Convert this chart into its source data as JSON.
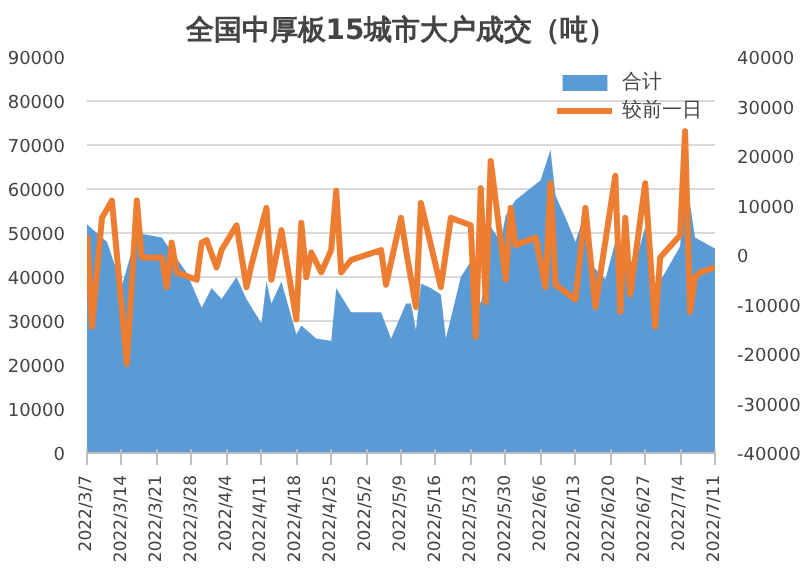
{
  "chart_data": {
    "type": "area",
    "title": "全国中厚板15城市大户成交（吨）",
    "xlim": [
      "2022-03-07",
      "2022-07-11"
    ],
    "xticks": [
      {
        "value": "2022-03-07",
        "label": "2022/3/7"
      },
      {
        "value": "2022-03-14",
        "label": "2022/3/14"
      },
      {
        "value": "2022-03-21",
        "label": "2022/3/21"
      },
      {
        "value": "2022-03-28",
        "label": "2022/3/28"
      },
      {
        "value": "2022-04-04",
        "label": "2022/4/4"
      },
      {
        "value": "2022-04-11",
        "label": "2022/4/11"
      },
      {
        "value": "2022-04-18",
        "label": "2022/4/18"
      },
      {
        "value": "2022-04-25",
        "label": "2022/4/25"
      },
      {
        "value": "2022-05-02",
        "label": "2022/5/2"
      },
      {
        "value": "2022-05-09",
        "label": "2022/5/9"
      },
      {
        "value": "2022-05-16",
        "label": "2022/5/16"
      },
      {
        "value": "2022-05-23",
        "label": "2022/5/23"
      },
      {
        "value": "2022-05-30",
        "label": "2022/5/30"
      },
      {
        "value": "2022-06-06",
        "label": "2022/6/6"
      },
      {
        "value": "2022-06-13",
        "label": "2022/6/13"
      },
      {
        "value": "2022-06-20",
        "label": "2022/6/20"
      },
      {
        "value": "2022-06-27",
        "label": "2022/6/27"
      },
      {
        "value": "2022-07-04",
        "label": "2022/7/4"
      },
      {
        "value": "2022-07-11",
        "label": "2022/7/11"
      }
    ],
    "ylim": [
      0,
      90000
    ],
    "yticks": [
      0,
      10000,
      20000,
      30000,
      40000,
      50000,
      60000,
      70000,
      80000,
      90000
    ],
    "y2lim": [
      -40000,
      40000
    ],
    "y2ticks": [
      -40000,
      -30000,
      -20000,
      -10000,
      0,
      10000,
      20000,
      30000,
      40000
    ],
    "grid": "y",
    "legend": "top right",
    "series": [
      {
        "name": "合计",
        "color": "#5b9bd5",
        "x": [
          "2022-03-07",
          "2022-03-11",
          "2022-03-14",
          "2022-03-17",
          "2022-03-22",
          "2022-03-27",
          "2022-03-30",
          "2022-04-01",
          "2022-04-03",
          "2022-04-06",
          "2022-04-08",
          "2022-04-11",
          "2022-04-12",
          "2022-04-13",
          "2022-04-15",
          "2022-04-18",
          "2022-04-19",
          "2022-04-22",
          "2022-04-25",
          "2022-04-26",
          "2022-04-29",
          "2022-05-05",
          "2022-05-07",
          "2022-05-10",
          "2022-05-11",
          "2022-05-12",
          "2022-05-13",
          "2022-05-15",
          "2022-05-17",
          "2022-05-18",
          "2022-05-21",
          "2022-05-23",
          "2022-05-25",
          "2022-05-26",
          "2022-05-27",
          "2022-05-29",
          "2022-05-30",
          "2022-06-01",
          "2022-06-06",
          "2022-06-08",
          "2022-06-09",
          "2022-06-11",
          "2022-06-13",
          "2022-06-15",
          "2022-06-16",
          "2022-06-19",
          "2022-06-21",
          "2022-06-23",
          "2022-06-25",
          "2022-06-27",
          "2022-06-29",
          "2022-07-01",
          "2022-07-04",
          "2022-07-05",
          "2022-07-07",
          "2022-07-11"
        ],
        "values": [
          52000,
          48000,
          38000,
          50000,
          49000,
          41000,
          33000,
          37500,
          35000,
          40000,
          35000,
          29500,
          39000,
          34000,
          39000,
          27000,
          29000,
          26000,
          25500,
          37500,
          32000,
          32000,
          26000,
          34000,
          34000,
          28000,
          38500,
          37500,
          36000,
          26000,
          40000,
          43500,
          34000,
          39500,
          51500,
          48000,
          54000,
          57500,
          62000,
          69000,
          58500,
          53500,
          48000,
          55000,
          43000,
          39500,
          48000,
          44500,
          43000,
          51500,
          37500,
          41000,
          47000,
          64000,
          49000,
          46500
        ]
      },
      {
        "name": "较前一日",
        "type": "line",
        "axis": "y2",
        "color": "#ed7d31",
        "x": [
          "2022-03-07",
          "2022-03-08",
          "2022-03-10",
          "2022-03-12",
          "2022-03-15",
          "2022-03-17",
          "2022-03-18",
          "2022-03-22",
          "2022-03-23",
          "2022-03-24",
          "2022-03-25",
          "2022-03-29",
          "2022-03-30",
          "2022-03-31",
          "2022-04-02",
          "2022-04-03",
          "2022-04-06",
          "2022-04-08",
          "2022-04-09",
          "2022-04-12",
          "2022-04-13",
          "2022-04-15",
          "2022-04-18",
          "2022-04-19",
          "2022-04-20",
          "2022-04-21",
          "2022-04-23",
          "2022-04-25",
          "2022-04-26",
          "2022-04-27",
          "2022-04-29",
          "2022-05-05",
          "2022-05-06",
          "2022-05-09",
          "2022-05-10",
          "2022-05-12",
          "2022-05-13",
          "2022-05-17",
          "2022-05-19",
          "2022-05-23",
          "2022-05-24",
          "2022-05-25",
          "2022-05-26",
          "2022-05-27",
          "2022-05-30",
          "2022-05-31",
          "2022-06-01",
          "2022-06-05",
          "2022-06-07",
          "2022-06-08",
          "2022-06-09",
          "2022-06-13",
          "2022-06-15",
          "2022-06-17",
          "2022-06-21",
          "2022-06-22",
          "2022-06-23",
          "2022-06-24",
          "2022-06-27",
          "2022-06-29",
          "2022-06-30",
          "2022-07-04",
          "2022-07-05",
          "2022-07-06",
          "2022-07-07",
          "2022-07-08",
          "2022-07-11"
        ],
        "values": [
          4000,
          -14500,
          7500,
          11000,
          -22000,
          11000,
          -500,
          -500,
          -6500,
          2500,
          -3500,
          -5000,
          2500,
          3000,
          -2500,
          1000,
          6000,
          -6500,
          -2000,
          9500,
          -5000,
          5000,
          -13000,
          6500,
          -4500,
          500,
          -3500,
          1000,
          13000,
          -3500,
          -1000,
          1000,
          -6000,
          7500,
          1000,
          -10500,
          10500,
          -6500,
          7500,
          6000,
          -16500,
          13500,
          -9500,
          19000,
          -5000,
          9500,
          2000,
          3500,
          -6500,
          14500,
          -6000,
          -9000,
          9500,
          -10500,
          16000,
          -11500,
          7500,
          -8000,
          14500,
          -14500,
          -500,
          4000,
          25000,
          -11500,
          -4500,
          -3500,
          -2500
        ]
      }
    ]
  }
}
